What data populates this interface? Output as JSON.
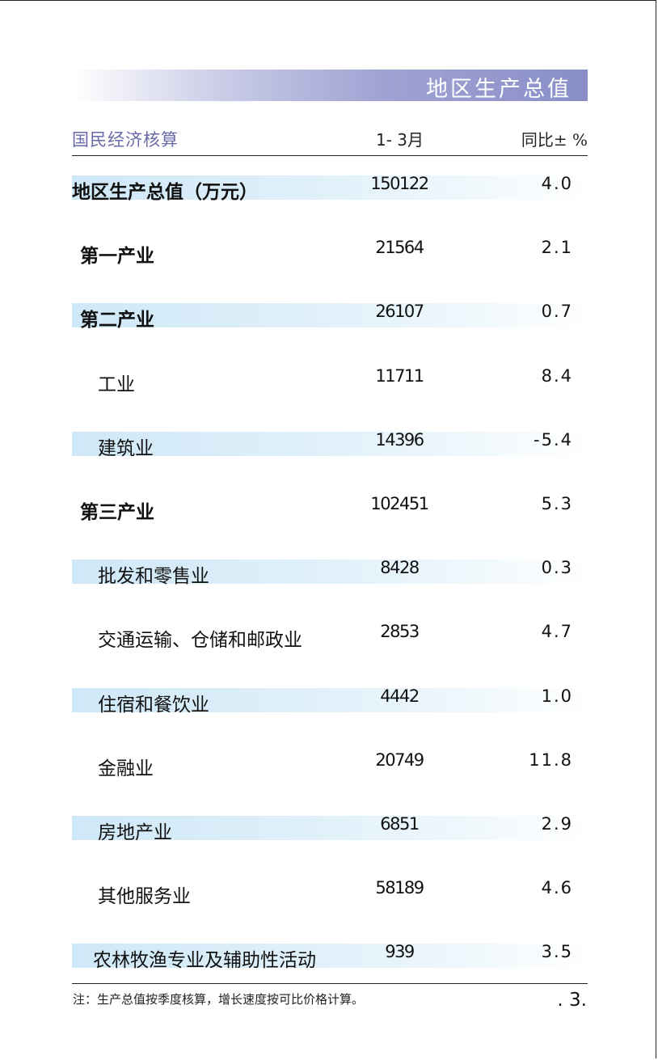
{
  "title": "地区生产总值",
  "header": {
    "name_label": "国民经济核算",
    "period_label": "1- 3月",
    "yoy_label": "同比± %"
  },
  "rows": [
    {
      "name": "地区生产总值（万元）",
      "value": "150122",
      "yoy": "4.0",
      "level": 0,
      "shaded": true,
      "bold": true
    },
    {
      "name": "第一产业",
      "value": "21564",
      "yoy": "2.1",
      "level": 1,
      "shaded": false,
      "bold": true
    },
    {
      "name": "第二产业",
      "value": "26107",
      "yoy": "0.7",
      "level": 1,
      "shaded": true,
      "bold": true
    },
    {
      "name": "工业",
      "value": "11711",
      "yoy": "8.4",
      "level": 2,
      "shaded": false,
      "bold": false
    },
    {
      "name": "建筑业",
      "value": "14396",
      "yoy": "-5.4",
      "level": 2,
      "shaded": true,
      "bold": false
    },
    {
      "name": "第三产业",
      "value": "102451",
      "yoy": "5.3",
      "level": 1,
      "shaded": false,
      "bold": true
    },
    {
      "name": "批发和零售业",
      "value": "8428",
      "yoy": "0.3",
      "level": 2,
      "shaded": true,
      "bold": false
    },
    {
      "name": "交通运输、仓储和邮政业",
      "value": "2853",
      "yoy": "4.7",
      "level": 2,
      "shaded": false,
      "bold": false
    },
    {
      "name": "住宿和餐饮业",
      "value": "4442",
      "yoy": "1.0",
      "level": 2,
      "shaded": true,
      "bold": false
    },
    {
      "name": "金融业",
      "value": "20749",
      "yoy": "11.8",
      "level": 2,
      "shaded": false,
      "bold": false
    },
    {
      "name": "房地产业",
      "value": "6851",
      "yoy": "2.9",
      "level": 2,
      "shaded": true,
      "bold": false
    },
    {
      "name": "其他服务业",
      "value": "58189",
      "yoy": "4.6",
      "level": 2,
      "shaded": false,
      "bold": false
    },
    {
      "name": "农林牧渔专业及辅助性活动",
      "value": "939",
      "yoy": "3.5",
      "level": 3,
      "shaded": true,
      "bold": false
    }
  ],
  "footnote": "注：生产总值按季度核算，增长速度按可比价格计算。",
  "page_number": ". 3."
}
